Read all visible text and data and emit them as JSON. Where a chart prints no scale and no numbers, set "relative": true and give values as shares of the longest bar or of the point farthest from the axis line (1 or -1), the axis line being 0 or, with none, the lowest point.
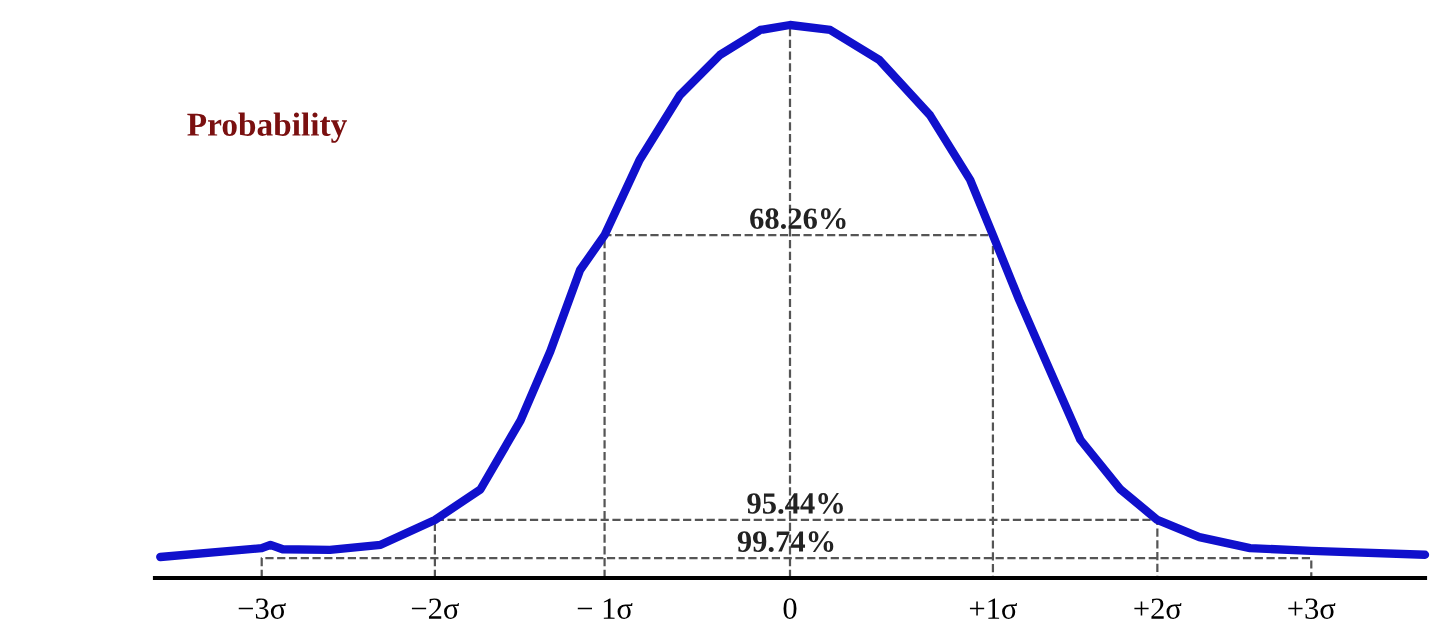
{
  "chart_data": {
    "type": "line",
    "relative": true,
    "xlim": [
      -3.63,
      3.63
    ],
    "xticks": [
      {
        "value": -3.02,
        "label": "−3σ"
      },
      {
        "value": -2.03,
        "label": "−2σ"
      },
      {
        "value": -1.06,
        "label": "− 1σ"
      },
      0,
      {
        "value": 1.16,
        "label": "+1σ"
      },
      {
        "value": 2.1,
        "label": "+2σ"
      },
      {
        "value": 2.98,
        "label": "+3σ"
      }
    ],
    "tick_labels": "x",
    "marker": "none",
    "ref_lines": [
      {
        "axis": "x",
        "value": 0,
        "color": "#555555",
        "line_style": "dashed"
      }
    ],
    "series": [
      {
        "color": "#555555",
        "line_style": "dashed",
        "x": [
          -1.06,
          -1.06,
          1.16,
          1.16
        ],
        "values": [
          0,
          0.62,
          0.62,
          0
        ]
      },
      {
        "color": "#555555",
        "line_style": "dashed",
        "x": [
          -2.03,
          -2.03,
          2.1,
          2.1
        ],
        "values": [
          0,
          0.105,
          0.105,
          0
        ]
      },
      {
        "color": "#555555",
        "line_style": "dashed",
        "x": [
          -3.02,
          -3.02,
          2.98,
          2.98
        ],
        "values": [
          0,
          0.036,
          0.036,
          0
        ]
      },
      {
        "color": "#1010cc",
        "line_style": "solid",
        "x": [
          -3.6,
          -3.02,
          -2.97,
          -2.9,
          -2.63,
          -2.34,
          -2.03,
          -1.77,
          -1.54,
          -1.37,
          -1.2,
          -1.06,
          -0.86,
          -0.63,
          -0.4,
          -0.17,
          0,
          0.23,
          0.51,
          0.8,
          1.03,
          1.16,
          1.31,
          1.46,
          1.66,
          1.89,
          2.1,
          2.34,
          2.63,
          2.98,
          3.63
        ],
        "values": [
          0.038,
          0.054,
          0.06,
          0.052,
          0.051,
          0.06,
          0.105,
          0.16,
          0.285,
          0.41,
          0.557,
          0.62,
          0.756,
          0.873,
          0.946,
          0.991,
          1.0,
          0.991,
          0.937,
          0.837,
          0.72,
          0.62,
          0.503,
          0.394,
          0.25,
          0.16,
          0.105,
          0.074,
          0.054,
          0.049,
          0.042
        ]
      }
    ],
    "annotations": [
      "Probability",
      "68.26%",
      "95.44%",
      "99.74%"
    ]
  }
}
